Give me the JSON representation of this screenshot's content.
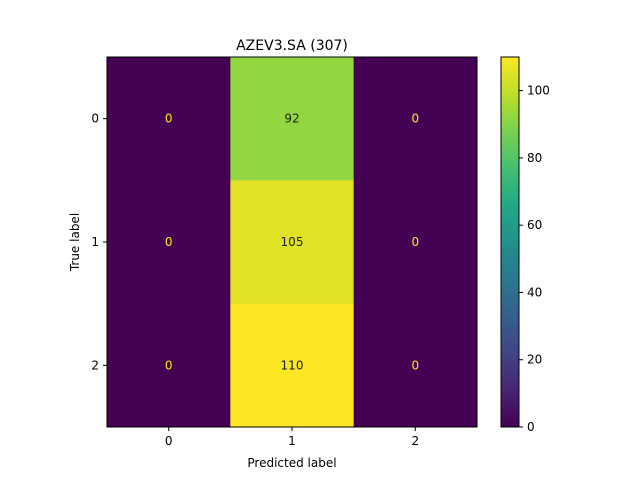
{
  "chart_data": {
    "type": "heatmap",
    "title": "AZEV3.SA (307)",
    "xlabel": "Predicted label",
    "ylabel": "True label",
    "x_categories": [
      "0",
      "1",
      "2"
    ],
    "y_categories": [
      "0",
      "1",
      "2"
    ],
    "matrix": [
      [
        0,
        92,
        0
      ],
      [
        0,
        105,
        0
      ],
      [
        0,
        110,
        0
      ]
    ],
    "colorbar": {
      "colormap": "viridis",
      "vmin": 0,
      "vmax": 110,
      "ticks": [
        0,
        20,
        40,
        60,
        80,
        100
      ]
    }
  }
}
